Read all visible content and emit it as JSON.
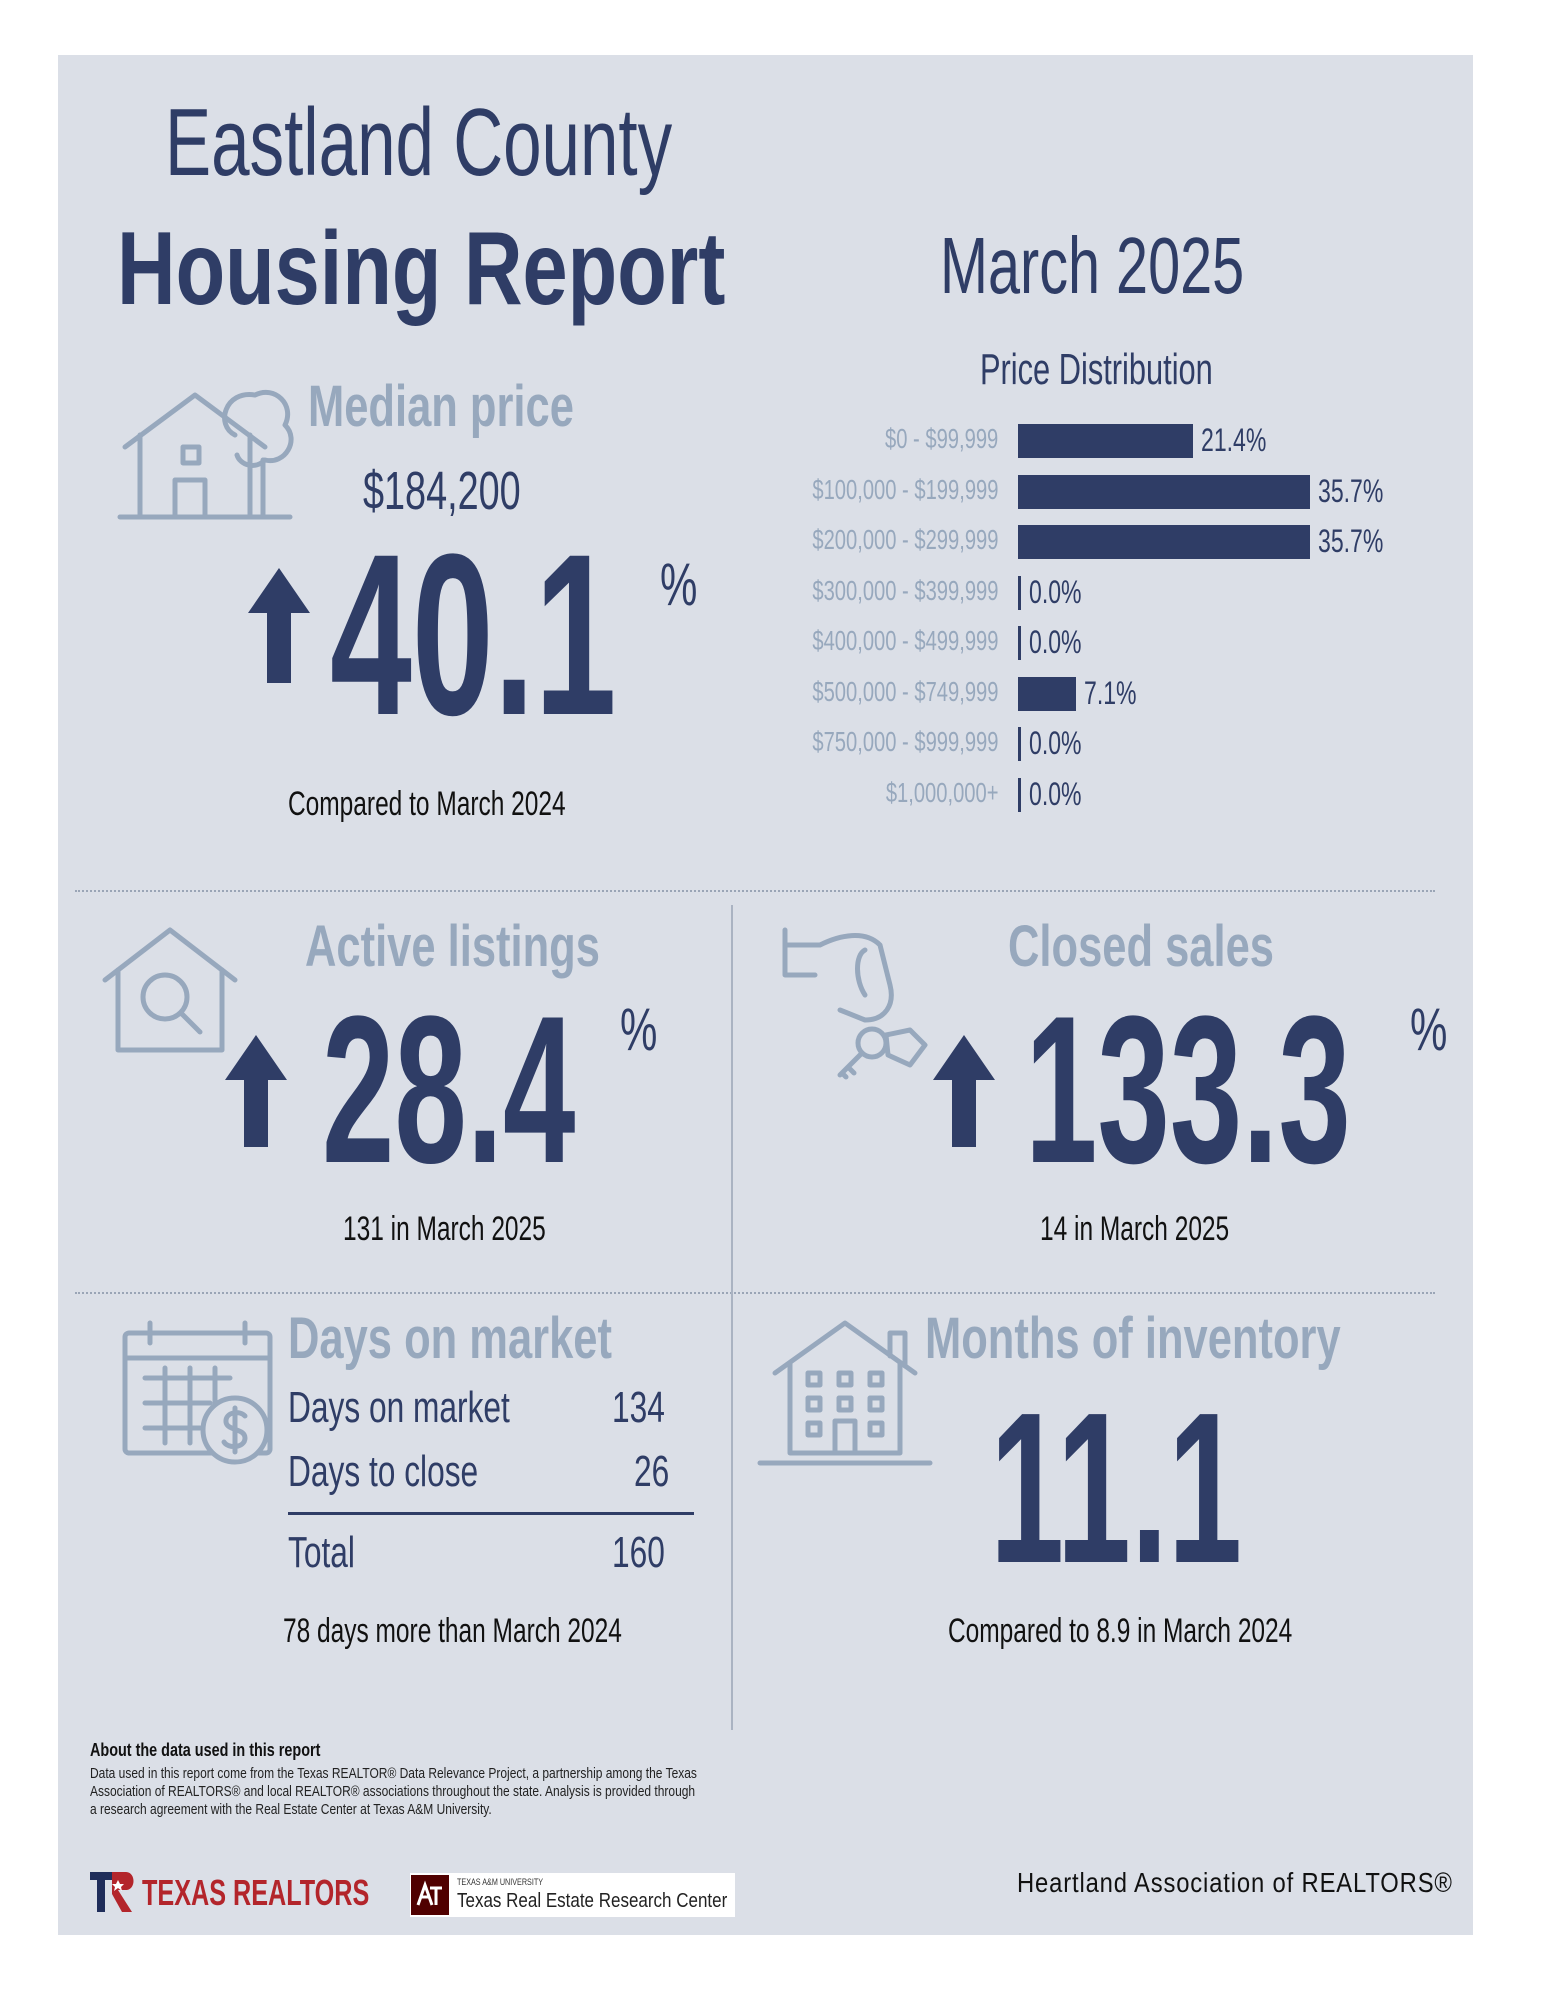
{
  "header": {
    "county": "Eastland County",
    "report": "Housing Report",
    "month": "March 2025"
  },
  "median_price": {
    "title": "Median price",
    "value": "$184,200",
    "change": "40.1",
    "unit": "%",
    "note": "Compared to March 2024"
  },
  "price_distribution": {
    "title": "Price Distribution"
  },
  "chart_data": {
    "type": "bar",
    "orientation": "horizontal",
    "title": "Price Distribution",
    "categories": [
      "$0 - $99,999",
      "$100,000 - $199,999",
      "$200,000 - $299,999",
      "$300,000 - $399,999",
      "$400,000 - $499,999",
      "$500,000 - $749,999",
      "$750,000 - $999,999",
      "$1,000,000+"
    ],
    "values": [
      21.4,
      35.7,
      35.7,
      0.0,
      0.0,
      7.1,
      0.0,
      0.0
    ],
    "value_labels": [
      "21.4%",
      "35.7%",
      "35.7%",
      "0.0%",
      "0.0%",
      "7.1%",
      "0.0%",
      "0.0%"
    ],
    "xlim": [
      0,
      35.7
    ],
    "xlabel": "",
    "ylabel": ""
  },
  "active_listings": {
    "title": "Active listings",
    "change": "28.4",
    "unit": "%",
    "note": "131 in March 2025"
  },
  "closed_sales": {
    "title": "Closed sales",
    "change": "133.3",
    "unit": "%",
    "note": "14 in March 2025"
  },
  "days_on_market": {
    "title": "Days on market",
    "rows": [
      {
        "label": "Days on market",
        "value": "134"
      },
      {
        "label": "Days to close",
        "value": "26"
      }
    ],
    "total_label": "Total",
    "total_value": "160",
    "note": "78 days more than March 2024"
  },
  "months_inventory": {
    "title": "Months of inventory",
    "value": "11.1",
    "note": "Compared to 8.9 in March 2024"
  },
  "about": {
    "heading": "About the data used in this report",
    "body": "Data used in this report come from the Texas REALTOR® Data Relevance Project, a partnership among the Texas Association of REALTORS® and local REALTOR® associations throughout the state. Analysis is provided through a research agreement with the Real Estate Center at Texas A&M University."
  },
  "footer": {
    "texas_realtors": "TEXAS REALTORS",
    "tamu_small": "TEXAS A&M UNIVERSITY",
    "tamu_center": "Texas Real Estate Research Center",
    "association": "Heartland Association of REALTORS®"
  },
  "colors": {
    "navy": "#2f3d66",
    "light_blue": "#97a8bd",
    "panel_bg": "#dbdfe7",
    "brand_red": "#b3252b"
  }
}
